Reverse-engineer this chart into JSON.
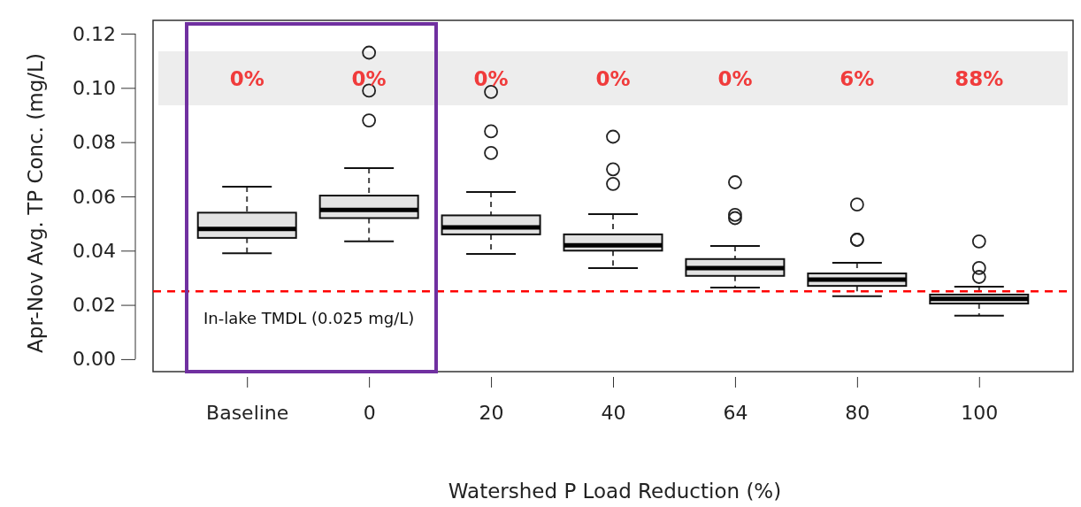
{
  "chart_data": {
    "type": "box",
    "xlabel": "Watershed P Load Reduction (%)",
    "ylabel": "Apr-Nov Avg. TP Conc. (mg/L)",
    "categories": [
      "Baseline",
      "0",
      "20",
      "40",
      "64",
      "80",
      "100"
    ],
    "boxes": [
      {
        "low": 0.039,
        "q1": 0.0447,
        "median": 0.048,
        "q3": 0.054,
        "high": 0.0636
      },
      {
        "low": 0.0434,
        "q1": 0.052,
        "median": 0.055,
        "q3": 0.0603,
        "high": 0.0704,
        "outliers": [
          0.113,
          0.099,
          0.088
        ]
      },
      {
        "low": 0.0388,
        "q1": 0.046,
        "median": 0.0486,
        "q3": 0.053,
        "high": 0.0616,
        "outliers": [
          0.0985,
          0.084,
          0.076
        ]
      },
      {
        "low": 0.0336,
        "q1": 0.04,
        "median": 0.042,
        "q3": 0.046,
        "high": 0.0535,
        "outliers": [
          0.082,
          0.07,
          0.0646
        ]
      },
      {
        "low": 0.0264,
        "q1": 0.0307,
        "median": 0.0336,
        "q3": 0.0369,
        "high": 0.0417,
        "outliers": [
          0.0652,
          0.0532,
          0.052
        ]
      },
      {
        "low": 0.0232,
        "q1": 0.027,
        "median": 0.0293,
        "q3": 0.0316,
        "high": 0.0355,
        "outliers": [
          0.057,
          0.044,
          0.044
        ]
      },
      {
        "low": 0.016,
        "q1": 0.0205,
        "median": 0.0222,
        "q3": 0.0238,
        "high": 0.0267,
        "outliers": [
          0.0434,
          0.0336,
          0.0303
        ]
      }
    ],
    "ylim": [
      -0.0046,
      0.1249
    ],
    "yticks": [
      {
        "value": 0,
        "label": "0.00"
      },
      0.02,
      0.04,
      0.06,
      0.08,
      {
        "value": 0.1,
        "label": "0.10"
      },
      0.12
    ],
    "ref_lines": [
      {
        "axis": "y",
        "value": 0.025,
        "label": "In-lake TMDL (0.025 mg/L)",
        "color": "#ff0000",
        "line_style": "dashed"
      }
    ],
    "bands": [
      {
        "axis": "y",
        "from": 0.0936,
        "to": 0.1135,
        "color": "#ededed"
      }
    ],
    "annotations": [
      "0%",
      "0%",
      "0%",
      "0%",
      "0%",
      "6%",
      "88%"
    ],
    "grid": false
  }
}
